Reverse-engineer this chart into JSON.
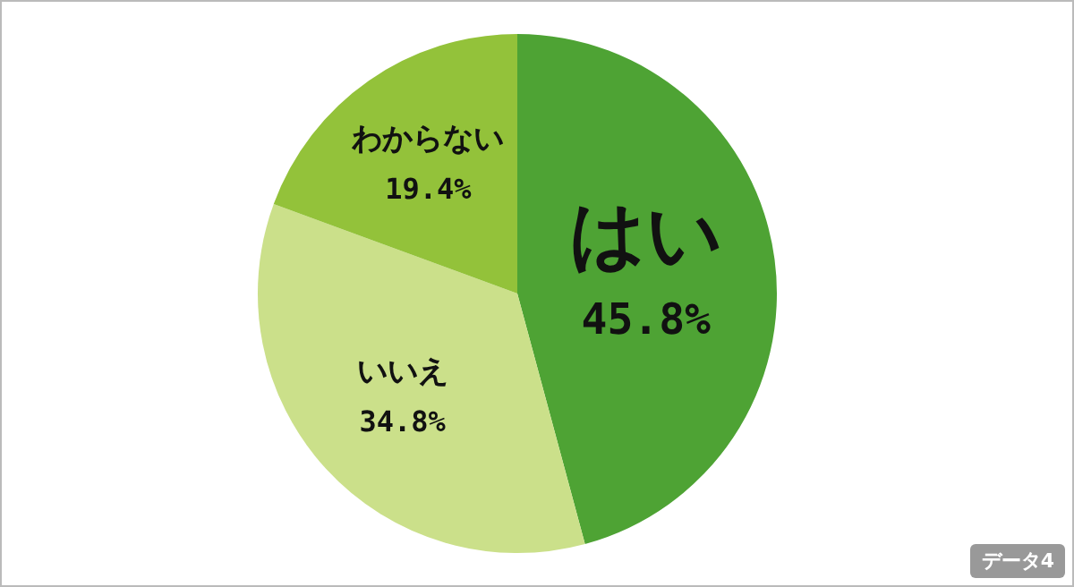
{
  "chart_data": {
    "type": "pie",
    "categories": [
      "はい",
      "いいえ",
      "わからない"
    ],
    "values": [
      45.8,
      34.8,
      19.4
    ],
    "colors": [
      "#4ea334",
      "#cbe08a",
      "#93c23a"
    ],
    "value_labels": [
      "45.8%",
      "34.8%",
      "19.4%"
    ],
    "legend": false,
    "annotations": [
      "データ4"
    ]
  }
}
